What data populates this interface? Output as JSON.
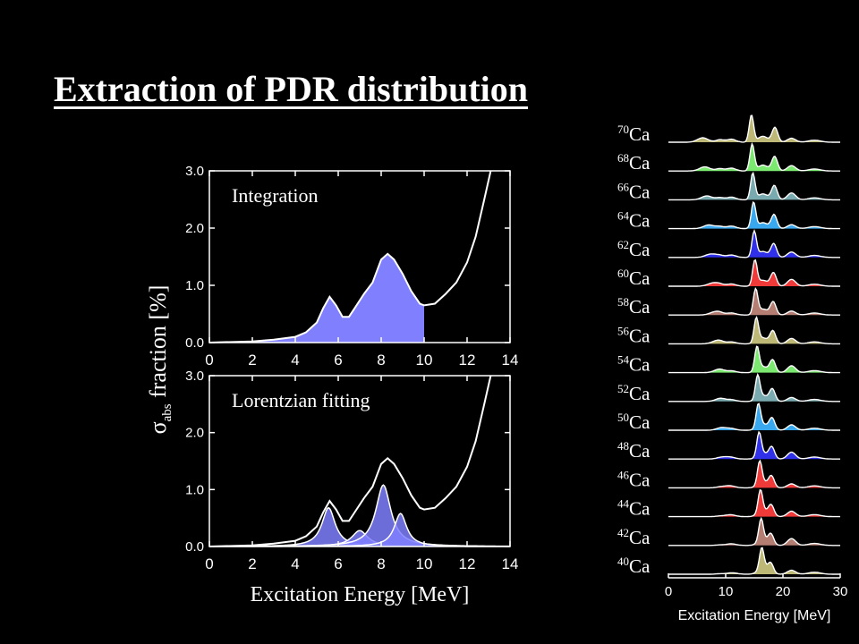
{
  "slide": {
    "title": "Extraction of PDR distribution"
  },
  "colors": {
    "background": "#000000",
    "foreground": "#ffffff",
    "pdr_fill": "#8080ff"
  },
  "chart_data": [
    {
      "type": "area",
      "panel_label": "Integration",
      "xlabel": "Excitation Energy [MeV]",
      "ylabel_main": "σ",
      "ylabel_sub": "abs",
      "ylabel_rest": " fraction [%]",
      "xlim": [
        0,
        14
      ],
      "ylim": [
        0,
        3
      ],
      "x_ticks": [
        "0",
        "2",
        "4",
        "6",
        "8",
        "10",
        "12",
        "14"
      ],
      "y_ticks": [
        "0.0",
        "1.0",
        "2.0",
        "3.0"
      ],
      "shaded_range": [
        0,
        10
      ],
      "curve": {
        "x": [
          0,
          2,
          3,
          4,
          4.5,
          5,
          5.3,
          5.6,
          5.9,
          6.2,
          6.5,
          6.8,
          7.2,
          7.6,
          8.0,
          8.3,
          8.6,
          9.0,
          9.4,
          9.8,
          10.0,
          10.5,
          11.0,
          11.5,
          12.0,
          12.4,
          12.8,
          13.1
        ],
        "y": [
          0,
          0.02,
          0.05,
          0.1,
          0.18,
          0.35,
          0.6,
          0.8,
          0.65,
          0.45,
          0.45,
          0.62,
          0.85,
          1.05,
          1.45,
          1.55,
          1.45,
          1.2,
          0.9,
          0.68,
          0.65,
          0.68,
          0.85,
          1.05,
          1.4,
          1.85,
          2.5,
          3.0
        ]
      }
    },
    {
      "type": "line",
      "panel_label": "Lorentzian fitting",
      "xlabel": "Excitation Energy [MeV]",
      "xlim": [
        0,
        14
      ],
      "ylim": [
        0,
        3
      ],
      "x_ticks": [
        "0",
        "2",
        "4",
        "6",
        "8",
        "10",
        "12",
        "14"
      ],
      "y_ticks": [
        "0.0",
        "1.0",
        "2.0",
        "3.0"
      ],
      "total_curve": {
        "x": [
          0,
          2,
          3,
          4,
          4.5,
          5,
          5.3,
          5.6,
          5.9,
          6.2,
          6.5,
          6.8,
          7.2,
          7.6,
          8.0,
          8.3,
          8.6,
          9.0,
          9.4,
          9.8,
          10.0,
          10.5,
          11.0,
          11.5,
          12.0,
          12.4,
          12.8,
          13.1
        ],
        "y": [
          0,
          0.02,
          0.05,
          0.1,
          0.18,
          0.35,
          0.6,
          0.8,
          0.65,
          0.45,
          0.45,
          0.62,
          0.85,
          1.05,
          1.45,
          1.55,
          1.45,
          1.2,
          0.9,
          0.68,
          0.65,
          0.68,
          0.85,
          1.05,
          1.4,
          1.85,
          2.5,
          3.0
        ]
      },
      "lorentzians": [
        {
          "center": 5.55,
          "height": 0.68,
          "width": 0.75
        },
        {
          "center": 7.0,
          "height": 0.28,
          "width": 0.9
        },
        {
          "center": 8.1,
          "height": 1.08,
          "width": 0.85
        },
        {
          "center": 8.9,
          "height": 0.58,
          "width": 0.7
        }
      ]
    },
    {
      "type": "area",
      "kind": "stacked-ridgeline",
      "xlabel": "Excitation Energy [MeV]",
      "xlim": [
        0,
        30
      ],
      "x_ticks": [
        "0",
        "10",
        "20",
        "30"
      ],
      "isotopes": [
        {
          "mass": "70",
          "element": "Ca",
          "color": "#bdb875"
        },
        {
          "mass": "68",
          "element": "Ca",
          "color": "#7be870"
        },
        {
          "mass": "66",
          "element": "Ca",
          "color": "#79aab0"
        },
        {
          "mass": "64",
          "element": "Ca",
          "color": "#3aa8ee"
        },
        {
          "mass": "62",
          "element": "Ca",
          "color": "#3030e8"
        },
        {
          "mass": "60",
          "element": "Ca",
          "color": "#f03a3a"
        },
        {
          "mass": "58",
          "element": "Ca",
          "color": "#b47e72"
        },
        {
          "mass": "56",
          "element": "Ca",
          "color": "#bdb875"
        },
        {
          "mass": "54",
          "element": "Ca",
          "color": "#7be870"
        },
        {
          "mass": "52",
          "element": "Ca",
          "color": "#79aab0"
        },
        {
          "mass": "50",
          "element": "Ca",
          "color": "#3aa8ee"
        },
        {
          "mass": "48",
          "element": "Ca",
          "color": "#3030e8"
        },
        {
          "mass": "46",
          "element": "Ca",
          "color": "#f03a3a"
        },
        {
          "mass": "44",
          "element": "Ca",
          "color": "#f03a3a"
        },
        {
          "mass": "42",
          "element": "Ca",
          "color": "#b47e72"
        },
        {
          "mass": "40",
          "element": "Ca",
          "color": "#bdb875"
        }
      ]
    }
  ]
}
